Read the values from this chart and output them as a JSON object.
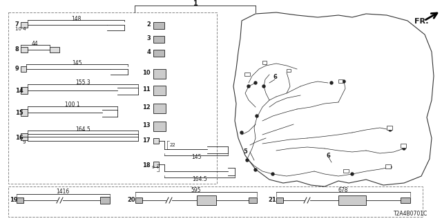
{
  "bg_color": "#ffffff",
  "dc": "#1a1a1a",
  "catalog_code": "T2A4B0701C",
  "fr_label": "FR.",
  "part1_label": "1",
  "dims": {
    "7_w": "148",
    "7_h": "10.4",
    "8_w": "44",
    "9_w": "145",
    "14_w": "155.3",
    "15_w": "100 1",
    "16_h": "9",
    "16_w": "164.5",
    "17_h": "22",
    "17_w": "145",
    "18_h": "9 4",
    "18_w": "164.5",
    "19_w": "1416",
    "20_w": "595",
    "21_w": "678"
  }
}
